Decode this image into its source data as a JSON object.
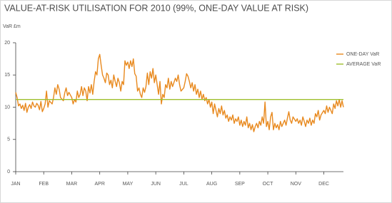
{
  "chart_data": {
    "type": "line",
    "title": "VALUE-AT-RISK UTILISATION FOR 2010 (99%, ONE-DAY VALUE AT RISK)",
    "y_label": "VaR £m",
    "xlim": [
      0,
      11.7
    ],
    "xticks": [
      {
        "value": 0,
        "label": "JAN"
      },
      {
        "value": 1,
        "label": "FEB"
      },
      {
        "value": 2,
        "label": "MAR"
      },
      {
        "value": 3,
        "label": "APR"
      },
      {
        "value": 4,
        "label": "MAY"
      },
      {
        "value": 5,
        "label": "JUN"
      },
      {
        "value": 6,
        "label": "JUL"
      },
      {
        "value": 7,
        "label": "AUG"
      },
      {
        "value": 8,
        "label": "SEP"
      },
      {
        "value": 9,
        "label": "OCT"
      },
      {
        "value": 10,
        "label": "NOV"
      },
      {
        "value": 11,
        "label": "DEC"
      }
    ],
    "ylim": [
      0,
      20
    ],
    "yticks": [
      0,
      5,
      10,
      15,
      20
    ],
    "legend": "right",
    "series": [
      {
        "name": "ONE-DAY VaR",
        "color": "#e8891e",
        "x": [
          0,
          0.05,
          0.1,
          0.15,
          0.2,
          0.25,
          0.3,
          0.35,
          0.4,
          0.45,
          0.5,
          0.55,
          0.6,
          0.65,
          0.7,
          0.75,
          0.8,
          0.85,
          0.9,
          0.95,
          1.0,
          1.05,
          1.1,
          1.15,
          1.2,
          1.3,
          1.35,
          1.4,
          1.45,
          1.5,
          1.55,
          1.6,
          1.7,
          1.75,
          1.8,
          1.85,
          1.9,
          2.0,
          2.05,
          2.1,
          2.15,
          2.2,
          2.25,
          2.3,
          2.35,
          2.4,
          2.45,
          2.5,
          2.55,
          2.6,
          2.65,
          2.7,
          2.75,
          2.8,
          2.85,
          2.9,
          2.95,
          3.0,
          3.05,
          3.1,
          3.15,
          3.2,
          3.25,
          3.3,
          3.35,
          3.4,
          3.45,
          3.5,
          3.55,
          3.6,
          3.65,
          3.7,
          3.75,
          3.8,
          3.85,
          3.9,
          3.95,
          4.0,
          4.05,
          4.1,
          4.15,
          4.2,
          4.25,
          4.3,
          4.35,
          4.4,
          4.45,
          4.5,
          4.55,
          4.6,
          4.65,
          4.7,
          4.75,
          4.8,
          4.85,
          4.9,
          4.95,
          5.0,
          5.05,
          5.1,
          5.15,
          5.2,
          5.25,
          5.3,
          5.35,
          5.4,
          5.45,
          5.5,
          5.55,
          5.6,
          5.7,
          5.75,
          5.8,
          5.85,
          5.9,
          6.0,
          6.05,
          6.1,
          6.15,
          6.2,
          6.25,
          6.3,
          6.35,
          6.4,
          6.45,
          6.5,
          6.55,
          6.6,
          6.65,
          6.7,
          6.75,
          6.8,
          6.85,
          6.9,
          6.95,
          7.0,
          7.05,
          7.1,
          7.15,
          7.2,
          7.25,
          7.3,
          7.35,
          7.4,
          7.45,
          7.5,
          7.55,
          7.6,
          7.65,
          7.7,
          7.75,
          7.8,
          7.85,
          7.9,
          7.95,
          8.0,
          8.05,
          8.1,
          8.15,
          8.2,
          8.25,
          8.3,
          8.35,
          8.4,
          8.45,
          8.5,
          8.55,
          8.6,
          8.65,
          8.7,
          8.75,
          8.8,
          8.85,
          8.9,
          8.95,
          9.0,
          9.05,
          9.1,
          9.15,
          9.2,
          9.25,
          9.3,
          9.35,
          9.4,
          9.45,
          9.5,
          9.55,
          9.6,
          9.65,
          9.7,
          9.75,
          9.8,
          9.85,
          9.9,
          10.0,
          10.05,
          10.1,
          10.15,
          10.2,
          10.25,
          10.3,
          10.35,
          10.4,
          10.45,
          10.5,
          10.55,
          10.6,
          10.65,
          10.7,
          10.75,
          10.8,
          10.85,
          10.9,
          11.0,
          11.05,
          11.1,
          11.15,
          11.2,
          11.25,
          11.3,
          11.35,
          11.4,
          11.45,
          11.5,
          11.55,
          11.6,
          11.65,
          11.7
        ],
        "values": [
          12.3,
          11.5,
          10.2,
          10.5,
          9.8,
          10.3,
          9.5,
          10.6,
          9.2,
          10.0,
          10.4,
          9.8,
          10.8,
          10.2,
          10.0,
          10.6,
          10.3,
          9.6,
          10.9,
          9.3,
          9.8,
          10.5,
          12.5,
          10.0,
          11.0,
          10.5,
          11.5,
          13.0,
          12.0,
          13.5,
          12.8,
          11.5,
          11.0,
          12.2,
          13.0,
          11.8,
          12.3,
          11.5,
          10.5,
          11.2,
          10.8,
          12.5,
          11.5,
          12.0,
          13.2,
          11.8,
          13.0,
          12.5,
          11.0,
          13.2,
          12.2,
          13.5,
          12.0,
          14.0,
          15.5,
          15.0,
          17.5,
          18.2,
          16.5,
          15.0,
          14.5,
          13.8,
          15.3,
          15.0,
          13.5,
          14.2,
          13.0,
          15.0,
          14.0,
          13.2,
          14.5,
          13.8,
          12.5,
          14.0,
          13.5,
          17.2,
          16.5,
          17.0,
          16.0,
          17.2,
          16.3,
          17.5,
          15.2,
          14.8,
          12.5,
          13.0,
          12.0,
          11.5,
          13.0,
          12.3,
          13.2,
          15.3,
          13.5,
          15.5,
          14.5,
          16.0,
          13.8,
          15.0,
          13.5,
          12.0,
          14.0,
          10.5,
          12.0,
          11.5,
          13.5,
          13.0,
          14.5,
          12.8,
          14.0,
          13.2,
          14.5,
          14.0,
          15.0,
          13.5,
          12.5,
          13.0,
          14.0,
          15.2,
          14.8,
          14.0,
          13.0,
          13.8,
          12.5,
          13.5,
          12.0,
          12.8,
          11.5,
          12.5,
          11.2,
          12.0,
          11.0,
          11.5,
          10.5,
          11.2,
          10.0,
          10.8,
          9.0,
          10.5,
          9.5,
          8.5,
          9.8,
          9.0,
          10.2,
          8.8,
          9.5,
          8.3,
          8.8,
          7.8,
          8.5,
          8.0,
          8.8,
          7.5,
          8.2,
          7.8,
          8.5,
          7.2,
          8.0,
          7.0,
          7.8,
          7.2,
          8.5,
          6.8,
          7.5,
          6.5,
          7.3,
          6.2,
          7.0,
          7.5,
          6.8,
          7.8,
          7.2,
          8.5,
          7.5,
          10.8,
          7.0,
          7.8,
          6.5,
          8.5,
          9.2,
          6.5,
          7.5,
          6.8,
          7.3,
          6.5,
          7.8,
          7.0,
          7.5,
          8.0,
          7.2,
          8.3,
          9.3,
          8.0,
          7.5,
          8.5,
          7.8,
          8.2,
          7.5,
          8.0,
          7.2,
          8.5,
          7.8,
          7.0,
          8.0,
          7.5,
          8.3,
          7.2,
          8.0,
          7.5,
          9.0,
          8.5,
          9.5,
          8.0,
          8.8,
          9.5,
          9.0,
          10.2,
          9.2,
          10.0,
          9.5,
          9.0,
          10.5,
          9.8,
          11.0,
          10.2,
          11.2,
          10.0,
          11.0,
          10.0
        ]
      },
      {
        "name": "AVERAGE VaR",
        "color": "#9fbf2e",
        "x": [
          0,
          11.7
        ],
        "values": [
          11.2,
          11.2
        ]
      }
    ]
  }
}
